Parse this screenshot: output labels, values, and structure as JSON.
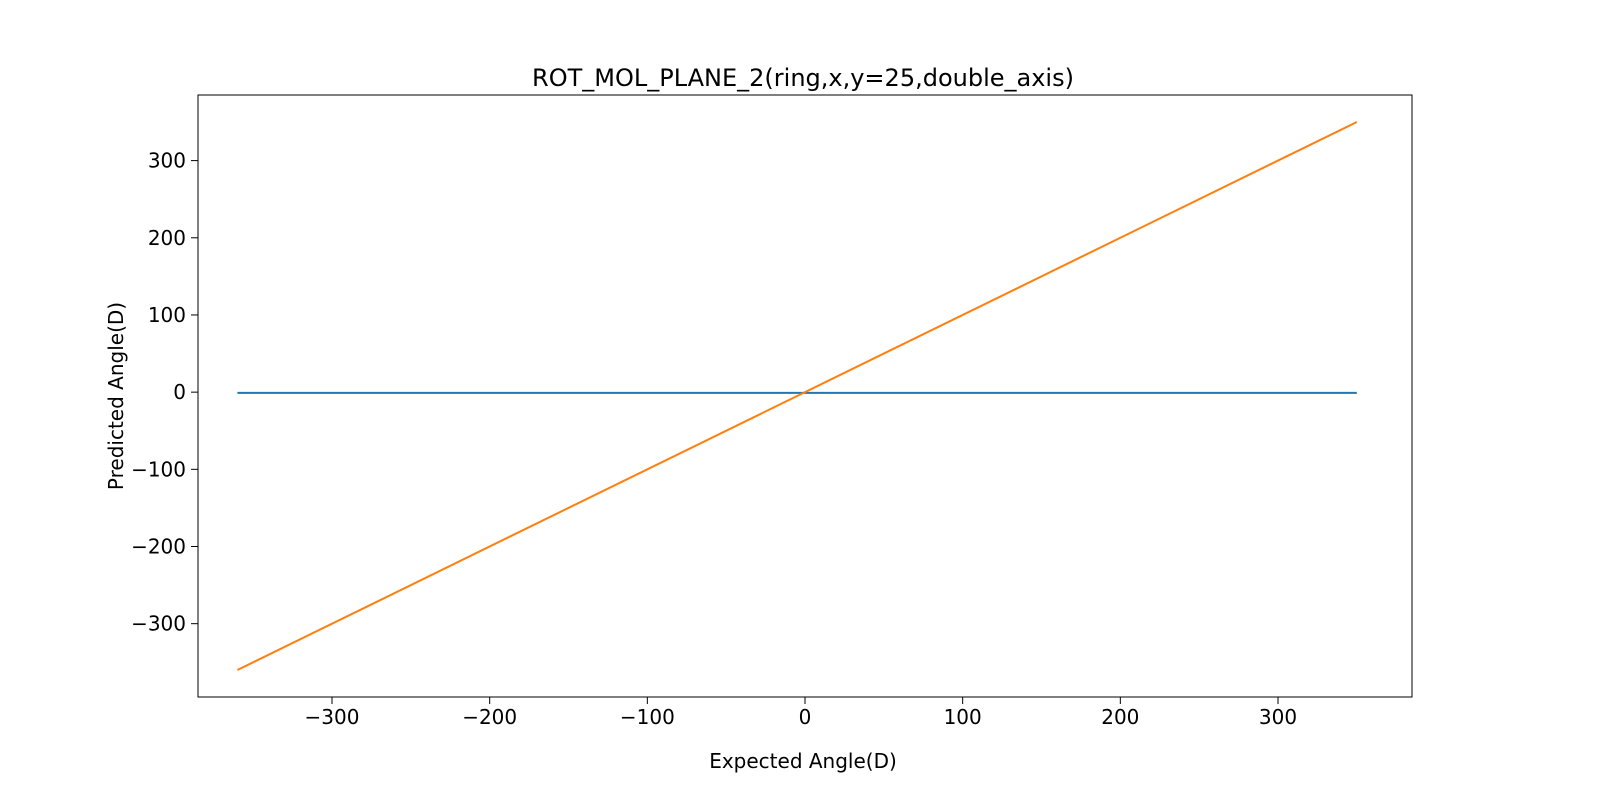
{
  "chart_data": {
    "type": "line",
    "title": "ROT_MOL_PLANE_2(ring,x,y=25,double_axis)",
    "xlabel": "Expected Angle(D)",
    "ylabel": "Predicted Angle(D)",
    "xlim": [
      -385,
      385
    ],
    "ylim": [
      -395,
      385
    ],
    "xticks": [
      -300,
      -200,
      -100,
      0,
      100,
      200,
      300
    ],
    "yticks": [
      -300,
      -200,
      -100,
      0,
      100,
      200,
      300
    ],
    "grid": false,
    "legend": "none",
    "series": [
      {
        "color": "#1f77b4",
        "x": [
          -360,
          350
        ],
        "y": [
          -1,
          -1
        ]
      },
      {
        "color": "#ff7f0e",
        "x": [
          -360,
          350
        ],
        "y": [
          -360,
          350
        ]
      }
    ]
  }
}
